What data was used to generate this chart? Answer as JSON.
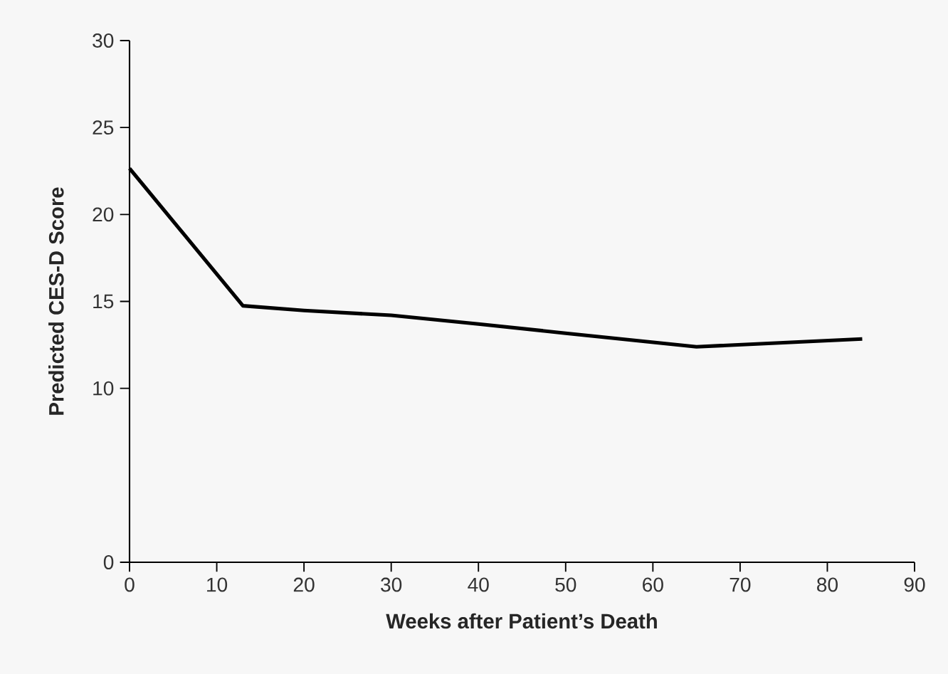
{
  "chart_data": {
    "type": "line",
    "xlabel": "Weeks after Patient’s Death",
    "ylabel": "Predicted CES-D Score",
    "x": [
      0,
      13,
      20,
      30,
      40,
      50,
      65,
      84
    ],
    "series": [
      {
        "color": "#000000",
        "values": [
          22.65,
          14.75,
          14.48,
          14.2,
          13.7,
          13.17,
          12.39,
          12.84
        ]
      }
    ],
    "xlim": [
      0,
      90
    ],
    "xticks": [
      0,
      10,
      20,
      30,
      40,
      50,
      60,
      70,
      80,
      90
    ],
    "ylim": [
      0,
      30
    ],
    "yticks": [
      0,
      10,
      15,
      20,
      25,
      30
    ],
    "grid": false,
    "marker": "none",
    "line_style": "solid"
  }
}
